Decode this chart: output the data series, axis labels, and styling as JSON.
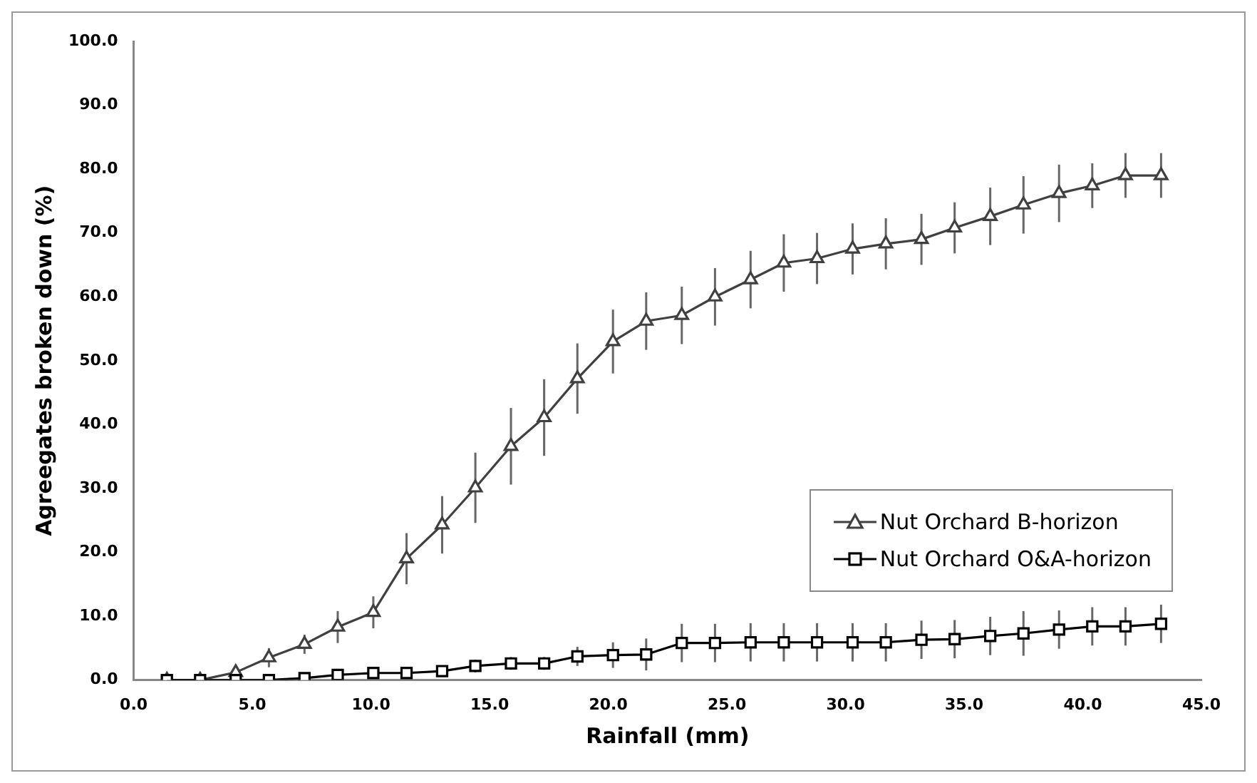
{
  "chart_data": {
    "type": "line",
    "xlabel": "Rainfall (mm)",
    "ylabel": "Agreegates broken down (%)",
    "x": [
      1.4,
      2.8,
      4.3,
      5.7,
      7.2,
      8.6,
      10.1,
      11.5,
      13.0,
      14.4,
      15.9,
      17.3,
      18.7,
      20.2,
      21.6,
      23.1,
      24.5,
      26.0,
      27.4,
      28.8,
      30.3,
      31.7,
      33.2,
      34.6,
      36.1,
      37.5,
      39.0,
      40.4,
      41.8,
      43.3
    ],
    "series": [
      {
        "name": "Nut Orchard B-horizon",
        "color": "#404040",
        "marker": "triangle",
        "values": [
          0,
          0,
          1.2,
          3.5,
          5.6,
          8.3,
          10.6,
          19,
          24.3,
          30.1,
          36.6,
          41.1,
          47.2,
          53,
          56.2,
          57.1,
          60,
          62.7,
          65.3,
          66,
          67.5,
          68.3,
          69,
          70.8,
          72.6,
          74.4,
          76.2,
          77.4,
          79,
          79
        ],
        "errors": [
          null,
          null,
          1,
          1.5,
          1.5,
          2.5,
          2.5,
          4,
          4.5,
          5.5,
          6,
          6,
          5.5,
          5,
          4.5,
          4.5,
          4.5,
          4.5,
          4.5,
          4,
          4,
          4,
          4,
          4,
          4.5,
          4.5,
          4.5,
          3.5,
          3.5,
          3.5
        ]
      },
      {
        "name": "Nut Orchard O&A-horizon",
        "color": "#000000",
        "marker": "square",
        "values": [
          0,
          0,
          0,
          0,
          0.3,
          0.8,
          1.1,
          1.1,
          1.4,
          2.2,
          2.6,
          2.6,
          3.7,
          3.9,
          4,
          5.8,
          5.8,
          5.9,
          5.9,
          5.9,
          5.9,
          5.9,
          6.3,
          6.4,
          6.9,
          7.3,
          7.9,
          8.4,
          8.4,
          8.8
        ],
        "errors": [
          0,
          0,
          0,
          0,
          0,
          0.5,
          0.5,
          0.5,
          0.5,
          1,
          1,
          1,
          1.5,
          2,
          2.5,
          3,
          3,
          3,
          3,
          3,
          3,
          3,
          3,
          3,
          3,
          3.5,
          3,
          3,
          3,
          3
        ]
      }
    ],
    "xlim": [
      0,
      45
    ],
    "xticks": [
      {
        "value": 0,
        "label": "0.0"
      },
      {
        "value": 5,
        "label": "5.0"
      },
      {
        "value": 10,
        "label": "10.0"
      },
      {
        "value": 15,
        "label": "15.0"
      },
      {
        "value": 20,
        "label": "20.0"
      },
      {
        "value": 25,
        "label": "25.0"
      },
      {
        "value": 30,
        "label": "30.0"
      },
      {
        "value": 35,
        "label": "35.0"
      },
      {
        "value": 40,
        "label": "40.0"
      },
      {
        "value": 45,
        "label": "45.0"
      }
    ],
    "ylim": [
      0,
      100
    ],
    "yticks": [
      {
        "value": 0,
        "label": "0.0"
      },
      {
        "value": 10,
        "label": "10.0"
      },
      {
        "value": 20,
        "label": "20.0"
      },
      {
        "value": 30,
        "label": "30.0"
      },
      {
        "value": 40,
        "label": "40.0"
      },
      {
        "value": 50,
        "label": "50.0"
      },
      {
        "value": 60,
        "label": "60.0"
      },
      {
        "value": 70,
        "label": "70.0"
      },
      {
        "value": 80,
        "label": "80.0"
      },
      {
        "value": 90,
        "label": "90.0"
      },
      {
        "value": 100,
        "label": "100.0"
      }
    ],
    "grid": false,
    "legend": "bottom right",
    "line_style": "solid"
  }
}
